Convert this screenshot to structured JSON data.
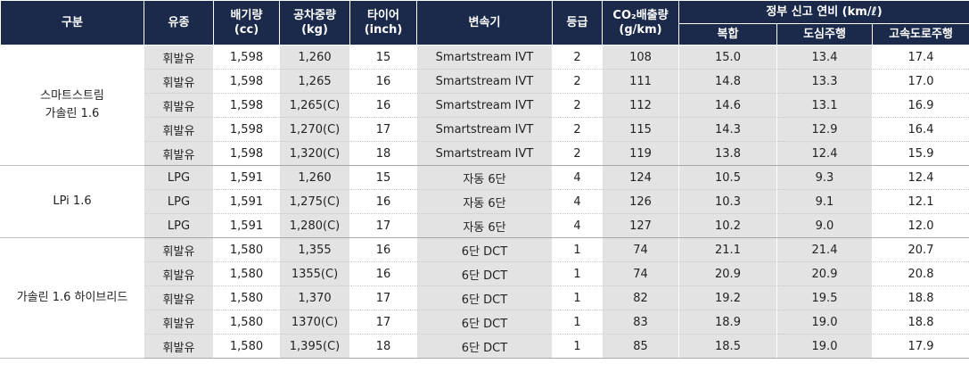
{
  "header": {
    "division": "구분",
    "fuel": "유종",
    "displacement": "배기량\n(cc)",
    "weight": "공차중량\n(kg)",
    "tire": "타이어\n(inch)",
    "transmission": "변속기",
    "grade": "등급",
    "co2": "CO₂배출량\n(g/km)",
    "efficiency": "정부 신고 연비 (km/ℓ)",
    "combined": "복합",
    "city": "도심주행",
    "highway": "고속도로주행"
  },
  "groups": [
    {
      "name": "스마트스트림\n가솔린 1.6",
      "rows": [
        {
          "fuel": "휘발유",
          "cc": "1,598",
          "weight": "1,260",
          "tire": "15",
          "trans": "Smartstream IVT",
          "grade": "2",
          "co2": "108",
          "combined": "15.0",
          "city": "13.4",
          "highway": "17.4"
        },
        {
          "fuel": "휘발유",
          "cc": "1,598",
          "weight": "1,265",
          "tire": "16",
          "trans": "Smartstream IVT",
          "grade": "2",
          "co2": "111",
          "combined": "14.8",
          "city": "13.3",
          "highway": "17.0"
        },
        {
          "fuel": "휘발유",
          "cc": "1,598",
          "weight": "1,265(C)",
          "tire": "16",
          "trans": "Smartstream IVT",
          "grade": "2",
          "co2": "112",
          "combined": "14.6",
          "city": "13.1",
          "highway": "16.9"
        },
        {
          "fuel": "휘발유",
          "cc": "1,598",
          "weight": "1,270(C)",
          "tire": "17",
          "trans": "Smartstream IVT",
          "grade": "2",
          "co2": "115",
          "combined": "14.3",
          "city": "12.9",
          "highway": "16.4"
        },
        {
          "fuel": "휘발유",
          "cc": "1,598",
          "weight": "1,320(C)",
          "tire": "18",
          "trans": "Smartstream IVT",
          "grade": "2",
          "co2": "119",
          "combined": "13.8",
          "city": "12.4",
          "highway": "15.9"
        }
      ]
    },
    {
      "name": "LPi 1.6",
      "rows": [
        {
          "fuel": "LPG",
          "cc": "1,591",
          "weight": "1,260",
          "tire": "15",
          "trans": "자동 6단",
          "grade": "4",
          "co2": "124",
          "combined": "10.5",
          "city": "9.3",
          "highway": "12.4"
        },
        {
          "fuel": "LPG",
          "cc": "1,591",
          "weight": "1,275(C)",
          "tire": "16",
          "trans": "자동 6단",
          "grade": "4",
          "co2": "126",
          "combined": "10.3",
          "city": "9.1",
          "highway": "12.1"
        },
        {
          "fuel": "LPG",
          "cc": "1,591",
          "weight": "1,280(C)",
          "tire": "17",
          "trans": "자동 6단",
          "grade": "4",
          "co2": "127",
          "combined": "10.2",
          "city": "9.0",
          "highway": "12.0"
        }
      ]
    },
    {
      "name": "가솔린 1.6 하이브리드",
      "rows": [
        {
          "fuel": "휘발유",
          "cc": "1,580",
          "weight": "1,355",
          "tire": "16",
          "trans": "6단 DCT",
          "grade": "1",
          "co2": "74",
          "combined": "21.1",
          "city": "21.4",
          "highway": "20.7"
        },
        {
          "fuel": "휘발유",
          "cc": "1,580",
          "weight": "1355(C)",
          "tire": "16",
          "trans": "6단 DCT",
          "grade": "1",
          "co2": "74",
          "combined": "20.9",
          "city": "20.9",
          "highway": "20.8"
        },
        {
          "fuel": "휘발유",
          "cc": "1,580",
          "weight": "1,370",
          "tire": "17",
          "trans": "6단 DCT",
          "grade": "1",
          "co2": "82",
          "combined": "19.2",
          "city": "19.5",
          "highway": "18.8"
        },
        {
          "fuel": "휘발유",
          "cc": "1,580",
          "weight": "1370(C)",
          "tire": "17",
          "trans": "6단 DCT",
          "grade": "1",
          "co2": "83",
          "combined": "18.9",
          "city": "19.0",
          "highway": "18.8"
        },
        {
          "fuel": "휘발유",
          "cc": "1,580",
          "weight": "1,395(C)",
          "tire": "18",
          "trans": "6단 DCT",
          "grade": "1",
          "co2": "85",
          "combined": "18.5",
          "city": "19.0",
          "highway": "17.9"
        }
      ]
    }
  ]
}
